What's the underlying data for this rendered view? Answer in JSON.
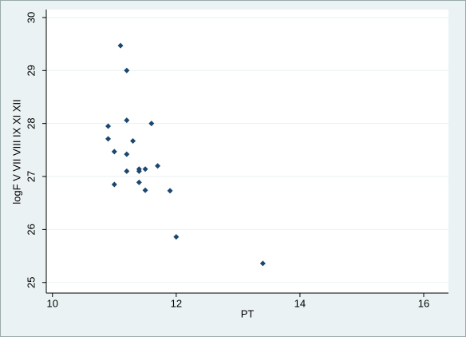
{
  "chart_data": {
    "type": "scatter",
    "x_label": "PT",
    "y_label": "logF V VII VIII IX XI XII",
    "xlim": [
      9.9,
      16.4
    ],
    "xticks": [
      10,
      12,
      14,
      16
    ],
    "ylim": [
      24.8,
      30.15
    ],
    "yticks": [
      25,
      26,
      27,
      28,
      29,
      30
    ],
    "grid": true,
    "color": "#1a476f",
    "x": [
      11.1,
      11.2,
      11.2,
      11.6,
      10.9,
      10.9,
      11.3,
      11.0,
      11.2,
      11.7,
      11.4,
      11.5,
      11.2,
      11.4,
      11.4,
      11.0,
      11.5,
      11.9,
      12.0,
      13.4
    ],
    "values": [
      29.47,
      29.0,
      28.06,
      28.0,
      27.95,
      27.71,
      27.67,
      27.47,
      27.42,
      27.2,
      27.14,
      27.14,
      27.1,
      27.1,
      26.89,
      26.85,
      26.74,
      26.73,
      25.86,
      25.36
    ]
  }
}
